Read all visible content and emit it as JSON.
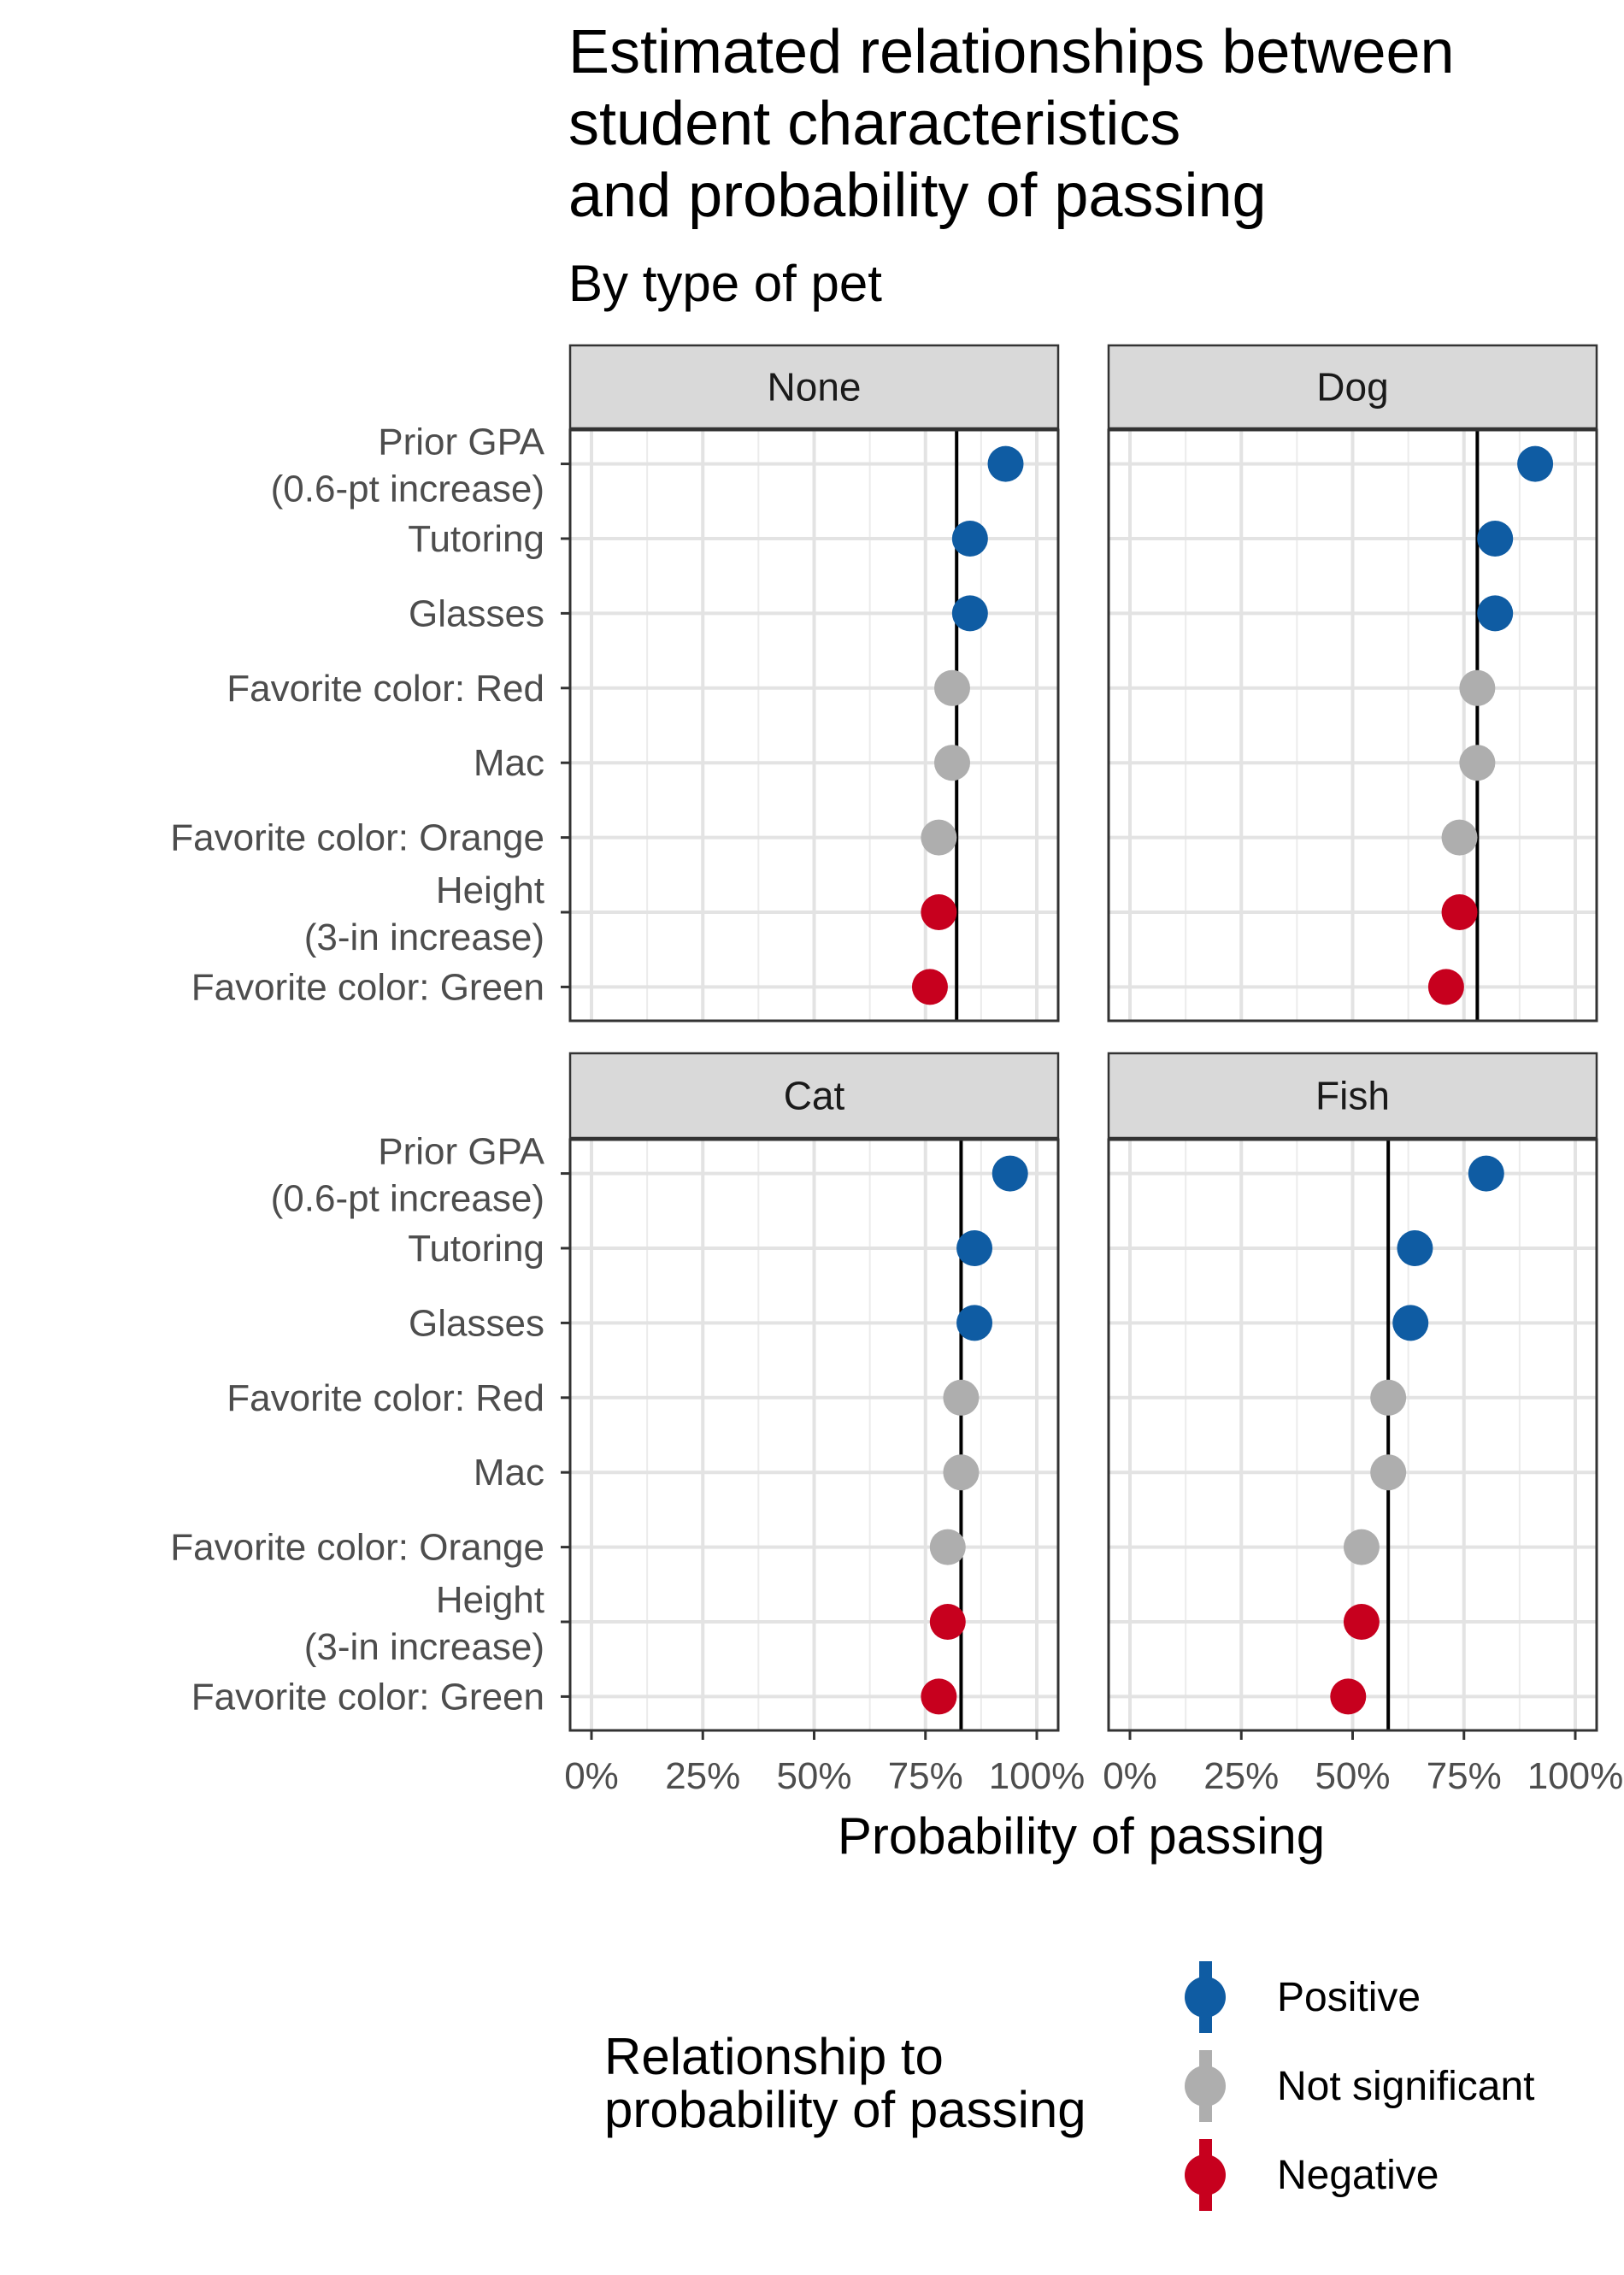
{
  "chart_data": {
    "type": "scatter",
    "title_lines": [
      "Estimated relationships between",
      "student characteristics",
      "and probability of passing"
    ],
    "subtitle": "By type of pet",
    "xlabel": "Probability of passing",
    "xlim": [
      0,
      1
    ],
    "xticks": [
      0,
      0.25,
      0.5,
      0.75,
      1.0
    ],
    "xtick_labels": [
      "0%",
      "25%",
      "50%",
      "75%",
      "100%"
    ],
    "grid": true,
    "categories": [
      [
        "Prior GPA",
        "(0.6-pt increase)"
      ],
      [
        "Tutoring"
      ],
      [
        "Glasses"
      ],
      [
        "Favorite color: Red"
      ],
      [
        "Mac"
      ],
      [
        "Favorite color: Orange"
      ],
      [
        "Height",
        "(3-in increase)"
      ],
      [
        "Favorite color: Green"
      ]
    ],
    "legend": {
      "title_lines": [
        "Relationship to",
        "probability of passing"
      ],
      "position": "bottom",
      "entries": [
        {
          "key": "positive",
          "label": "Positive",
          "color": "#0F5CA3"
        },
        {
          "key": "ns",
          "label": "Not significant",
          "color": "#AEAEAE"
        },
        {
          "key": "negative",
          "label": "Negative",
          "color": "#C7001E"
        }
      ]
    },
    "panels": [
      {
        "name": "None",
        "baseline": 0.82,
        "values": [
          0.93,
          0.85,
          0.85,
          0.81,
          0.81,
          0.78,
          0.78,
          0.76
        ],
        "status": [
          "positive",
          "positive",
          "positive",
          "ns",
          "ns",
          "ns",
          "negative",
          "negative"
        ]
      },
      {
        "name": "Dog",
        "baseline": 0.78,
        "values": [
          0.91,
          0.82,
          0.82,
          0.78,
          0.78,
          0.74,
          0.74,
          0.71
        ],
        "status": [
          "positive",
          "positive",
          "positive",
          "ns",
          "ns",
          "ns",
          "negative",
          "negative"
        ]
      },
      {
        "name": "Cat",
        "baseline": 0.83,
        "values": [
          0.94,
          0.86,
          0.86,
          0.83,
          0.83,
          0.8,
          0.8,
          0.78
        ],
        "status": [
          "positive",
          "positive",
          "positive",
          "ns",
          "ns",
          "ns",
          "negative",
          "negative"
        ]
      },
      {
        "name": "Fish",
        "baseline": 0.58,
        "values": [
          0.8,
          0.64,
          0.63,
          0.58,
          0.58,
          0.52,
          0.52,
          0.49
        ],
        "status": [
          "positive",
          "positive",
          "positive",
          "ns",
          "ns",
          "ns",
          "negative",
          "negative"
        ]
      }
    ]
  }
}
